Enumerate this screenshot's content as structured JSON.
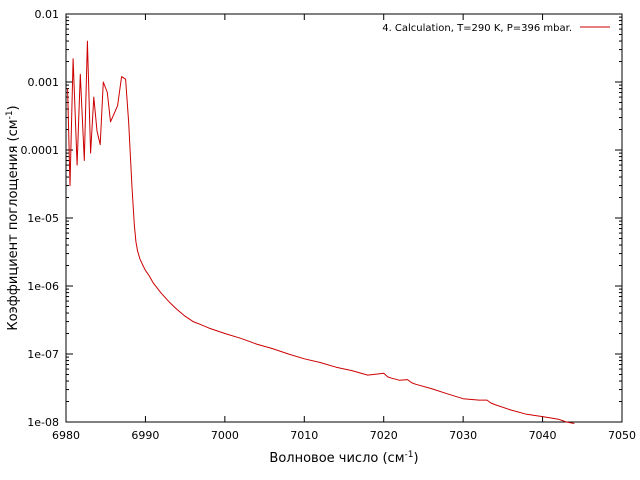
{
  "chart_data": {
    "type": "line",
    "xlabel_main": "Волновое число (см",
    "xlabel_sup": "-1",
    "xlabel_end": ")",
    "ylabel_main": "Коэффициент поглощения (см",
    "ylabel_sup": "-1",
    "ylabel_end": ")",
    "xlim": [
      6980,
      7050
    ],
    "ylim": [
      1e-08,
      0.01
    ],
    "yscale": "log",
    "grid": false,
    "legend_position": "top-right",
    "x_ticks": [
      {
        "value": 6980,
        "label": "6980"
      },
      {
        "value": 6990,
        "label": "6990"
      },
      {
        "value": 7000,
        "label": "7000"
      },
      {
        "value": 7010,
        "label": "7010"
      },
      {
        "value": 7020,
        "label": "7020"
      },
      {
        "value": 7030,
        "label": "7030"
      },
      {
        "value": 7040,
        "label": "7040"
      },
      {
        "value": 7050,
        "label": "7050"
      }
    ],
    "y_ticks": [
      {
        "value": 0.01,
        "label": "0.01"
      },
      {
        "value": 0.001,
        "label": "0.001"
      },
      {
        "value": 0.0001,
        "label": "0.0001"
      },
      {
        "value": 1e-05,
        "label": "1e-05"
      },
      {
        "value": 1e-06,
        "label": "1e-06"
      },
      {
        "value": 1e-07,
        "label": "1e-07"
      },
      {
        "value": 1e-08,
        "label": "1e-08"
      }
    ],
    "series": [
      {
        "name": "4. Calculation, T=290 K, P=396 mbar.",
        "color": "#cc0000",
        "x": [
          6980.2,
          6980.5,
          6980.9,
          6981.4,
          6981.8,
          6982.3,
          6982.7,
          6983.1,
          6983.5,
          6983.9,
          6984.3,
          6984.7,
          6985.2,
          6985.6,
          6986.0,
          6986.5,
          6987.0,
          6987.5,
          6987.9,
          6988.3,
          6988.6,
          6988.8,
          6989.0,
          6989.3,
          6989.6,
          6990.0,
          6990.5,
          6991.0,
          6992.0,
          6993.0,
          6994.0,
          6995.0,
          6996.0,
          6997.0,
          6998.0,
          7000.0,
          7002.0,
          7004.0,
          7006.0,
          7008.0,
          7010.0,
          7012.0,
          7014.0,
          7016.0,
          7018.0,
          7020.0,
          7020.5,
          7021.0,
          7022.0,
          7023.0,
          7023.5,
          7024.0,
          7026.0,
          7028.0,
          7030.0,
          7032.0,
          7033.0,
          7033.5,
          7034.0,
          7036.0,
          7038.0,
          7040.0,
          7042.0,
          7043.0,
          7044.0
        ],
        "y": [
          0.0008,
          3e-05,
          0.0022,
          6e-05,
          0.0013,
          7e-05,
          0.004,
          9e-05,
          0.0006,
          0.00019,
          0.00012,
          0.001,
          0.0007,
          0.00026,
          0.00033,
          0.00045,
          0.0012,
          0.0011,
          0.00025,
          3e-05,
          8e-06,
          4.5e-06,
          3.3e-06,
          2.5e-06,
          2.1e-06,
          1.7e-06,
          1.4e-06,
          1.1e-06,
          7.8e-07,
          5.8e-07,
          4.5e-07,
          3.6e-07,
          3e-07,
          2.7e-07,
          2.4e-07,
          2e-07,
          1.7e-07,
          1.4e-07,
          1.2e-07,
          1e-07,
          8.5e-08,
          7.5e-08,
          6.4e-08,
          5.7e-08,
          4.9e-08,
          5.2e-08,
          4.6e-08,
          4.4e-08,
          4.1e-08,
          4.2e-08,
          3.8e-08,
          3.6e-08,
          3.1e-08,
          2.6e-08,
          2.2e-08,
          2.1e-08,
          2.1e-08,
          1.9e-08,
          1.8e-08,
          1.5e-08,
          1.3e-08,
          1.2e-08,
          1.1e-08,
          1e-08,
          9.5e-09
        ]
      }
    ]
  }
}
